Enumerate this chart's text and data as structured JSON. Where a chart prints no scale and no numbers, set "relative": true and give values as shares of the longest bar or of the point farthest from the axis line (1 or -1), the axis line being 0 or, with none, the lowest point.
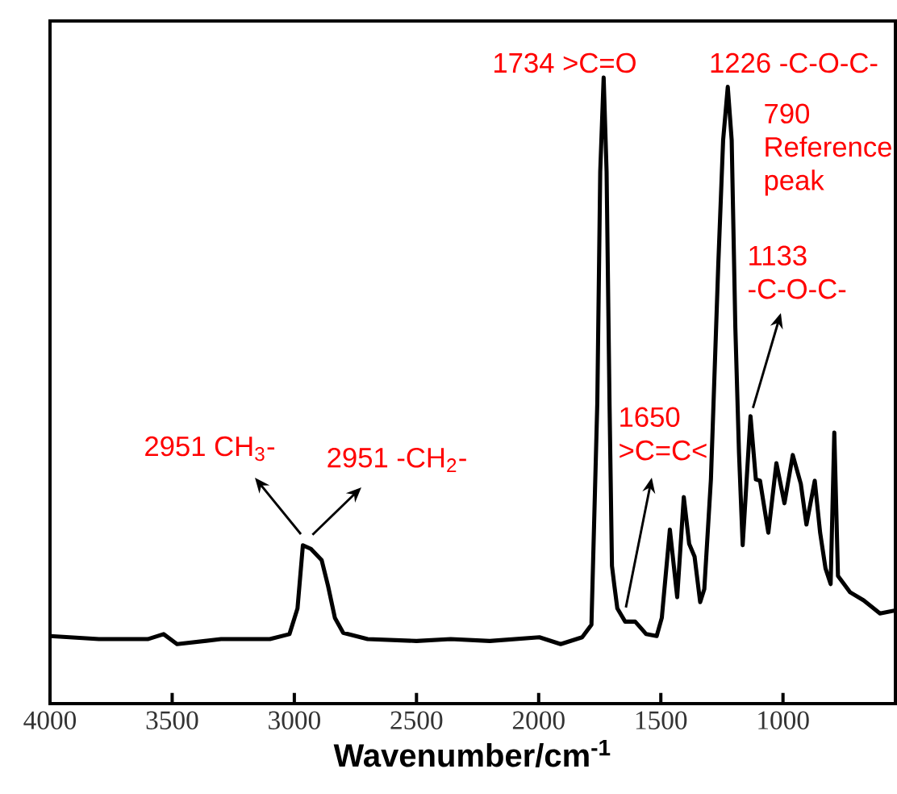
{
  "chart_data": {
    "type": "line",
    "relative": true,
    "xlabel": "Wavenumber/cm$^{-1}$",
    "xlim": [
      4000,
      540
    ],
    "xticks": [
      4000,
      3500,
      3000,
      2500,
      2000,
      1500,
      1000
    ],
    "tick_labels": "x",
    "marker": "none",
    "line_style": "solid",
    "x": [
      4000,
      3800,
      3600,
      3535,
      3480,
      3300,
      3100,
      3020,
      2987,
      2965,
      2932,
      2888,
      2862,
      2834,
      2800,
      2700,
      2500,
      2360,
      2200,
      1997,
      1910,
      1822,
      1784,
      1760,
      1748,
      1734,
      1722,
      1710,
      1700,
      1690,
      1678,
      1646,
      1605,
      1580,
      1560,
      1517,
      1496,
      1463,
      1433,
      1406,
      1384,
      1362,
      1339,
      1322,
      1295,
      1265,
      1245,
      1226,
      1210,
      1195,
      1180,
      1165,
      1133,
      1111,
      1094,
      1060,
      1027,
      994,
      960,
      927,
      904,
      870,
      848,
      826,
      805,
      790,
      775,
      726,
      670,
      603,
      540
    ],
    "series": [
      {
        "color": "#000000",
        "values": [
          0.108,
          0.103,
          0.103,
          0.111,
          0.095,
          0.103,
          0.103,
          0.111,
          0.152,
          0.253,
          0.247,
          0.229,
          0.188,
          0.137,
          0.113,
          0.103,
          0.1,
          0.103,
          0.1,
          0.106,
          0.095,
          0.106,
          0.126,
          0.48,
          0.85,
          1.0,
          0.85,
          0.48,
          0.22,
          0.188,
          0.152,
          0.131,
          0.131,
          0.12,
          0.111,
          0.108,
          0.137,
          0.278,
          0.17,
          0.33,
          0.255,
          0.235,
          0.162,
          0.183,
          0.358,
          0.7,
          0.9,
          0.985,
          0.9,
          0.6,
          0.4,
          0.253,
          0.459,
          0.358,
          0.356,
          0.273,
          0.384,
          0.32,
          0.397,
          0.351,
          0.286,
          0.356,
          0.273,
          0.216,
          0.191,
          0.433,
          0.204,
          0.178,
          0.165,
          0.144,
          0.149
        ]
      }
    ],
    "annotations": [
      {
        "text": "2951 CH$_{3}$-",
        "x": 2951,
        "y": 0.26
      },
      {
        "text": "2951 -CH$_{2}$-",
        "x": 2951,
        "y": 0.26
      },
      {
        "text": "1734 >C=O",
        "x": 1734,
        "y": 1.0
      },
      {
        "text": "1650 >C=C<",
        "x": 1650,
        "y": 0.14
      },
      {
        "text": "1226 -C-O-C-",
        "x": 1226,
        "y": 0.985
      },
      "790 Reference peak",
      {
        "text": "1133 -C-O-C-",
        "x": 1133,
        "y": 0.459
      }
    ]
  }
}
